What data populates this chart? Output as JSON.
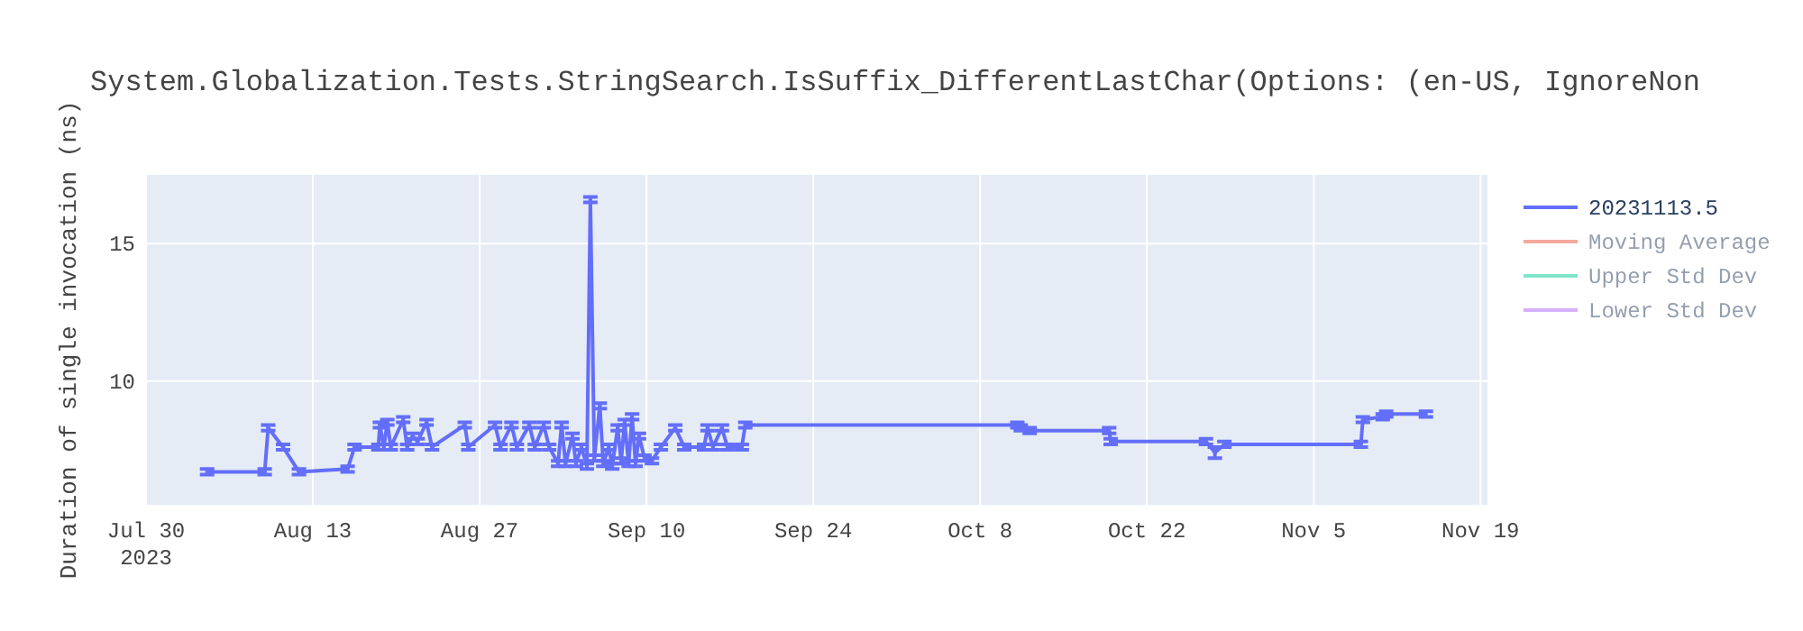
{
  "chart_data": {
    "type": "line",
    "title": "System.Globalization.Tests.StringSearch.IsSuffix_DifferentLastChar(Options: (en-US, IgnoreNon",
    "ylabel": "Duration of single invocation (ns)",
    "xlim": [
      "2023-07-30",
      "2023-11-19T14:00"
    ],
    "ylim": [
      5.5,
      17.5
    ],
    "yticks": [
      10,
      15
    ],
    "xticks": [
      {
        "value": "2023-07-30",
        "label": "Jul 30\n2023"
      },
      {
        "value": "2023-08-13",
        "label": "Aug 13"
      },
      {
        "value": "2023-08-27",
        "label": "Aug 27"
      },
      {
        "value": "2023-09-10",
        "label": "Sep 10"
      },
      {
        "value": "2023-09-24",
        "label": "Sep 24"
      },
      {
        "value": "2023-10-08",
        "label": "Oct 8"
      },
      {
        "value": "2023-10-22",
        "label": "Oct 22"
      },
      {
        "value": "2023-11-05",
        "label": "Nov 5"
      },
      {
        "value": "2023-11-19",
        "label": "Nov 19"
      }
    ],
    "grid": true,
    "legend": "right",
    "marker": "none",
    "line_style": "solid",
    "series": [
      {
        "name": "20231113.5",
        "color": "#636efa",
        "x": [
          "2023-08-04T03:00",
          "2023-08-08T23:00",
          "2023-08-09T06:00",
          "2023-08-10T12:00",
          "2023-08-11T20:00",
          "2023-08-15T22:00",
          "2023-08-16T12:00",
          "2023-08-18T12:00",
          "2023-08-18T15:00",
          "2023-08-18T23:00",
          "2023-08-19T06:00",
          "2023-08-19T13:00",
          "2023-08-20T14:00",
          "2023-08-20T22:00",
          "2023-08-21T09:00",
          "2023-08-21T19:00",
          "2023-08-22T13:00",
          "2023-08-23T00:00",
          "2023-08-25T18:00",
          "2023-08-26T01:00",
          "2023-08-28T07:00",
          "2023-08-28T18:00",
          "2023-08-29T16:00",
          "2023-08-30T03:00",
          "2023-08-31T04:00",
          "2023-08-31T15:00",
          "2023-09-01T09:00",
          "2023-09-01T20:00",
          "2023-09-02T14:00",
          "2023-09-02T21:00",
          "2023-09-03T05:00",
          "2023-09-03T19:00",
          "2023-09-04T02:00",
          "2023-09-04T13:00",
          "2023-09-05T00:00",
          "2023-09-05T07:00",
          "2023-09-05T15:00",
          "2023-09-06T02:00",
          "2023-09-06T09:00",
          "2023-09-06T20:00",
          "2023-09-07T03:00",
          "2023-09-07T14:00",
          "2023-09-07T21:00",
          "2023-09-08T04:00",
          "2023-09-08T12:00",
          "2023-09-08T19:00",
          "2023-09-09T02:00",
          "2023-09-09T09:00",
          "2023-09-09T20:00",
          "2023-09-10T11:00",
          "2023-09-11T05:00",
          "2023-09-12T10:00",
          "2023-09-13T04:00",
          "2023-09-14T20:00",
          "2023-09-15T03:00",
          "2023-09-15T14:00",
          "2023-09-16T08:00",
          "2023-09-16T19:00",
          "2023-09-18T00:00",
          "2023-09-18T07:00",
          "2023-10-11T03:00",
          "2023-10-11T10:00",
          "2023-10-12T04:00",
          "2023-10-18T20:00",
          "2023-10-18T23:00",
          "2023-10-26T23:00",
          "2023-10-27T17:00",
          "2023-10-28T12:00",
          "2023-11-08T23:00",
          "2023-11-09T03:00",
          "2023-11-10T19:00",
          "2023-11-11T02:00",
          "2023-11-14T10:00"
        ],
        "values": [
          6.7,
          6.7,
          8.3,
          7.6,
          6.7,
          6.8,
          7.6,
          7.6,
          8.4,
          7.6,
          8.5,
          7.6,
          8.6,
          7.6,
          8.0,
          7.8,
          8.5,
          7.6,
          8.4,
          7.6,
          8.4,
          7.6,
          8.4,
          7.6,
          8.4,
          7.6,
          8.4,
          7.6,
          7.0,
          8.4,
          7.0,
          8.0,
          7.0,
          7.6,
          6.9,
          16.6,
          7.2,
          9.1,
          7.0,
          7.6,
          6.9,
          8.3,
          7.1,
          8.5,
          7.0,
          8.7,
          7.0,
          8.0,
          7.2,
          7.1,
          7.6,
          8.3,
          7.6,
          7.6,
          8.3,
          7.6,
          8.3,
          7.6,
          7.6,
          8.4,
          8.4,
          8.3,
          8.2,
          8.2,
          7.8,
          7.8,
          7.4,
          7.7,
          7.7,
          8.6,
          8.7,
          8.8,
          8.8
        ],
        "errors": [
          0.1,
          0.1,
          0.1,
          0.1,
          0.1,
          0.1,
          0.1,
          0.1,
          0.1,
          0.1,
          0.1,
          0.1,
          0.1,
          0.1,
          0.1,
          0.1,
          0.1,
          0.1,
          0.1,
          0.1,
          0.1,
          0.1,
          0.1,
          0.1,
          0.1,
          0.1,
          0.1,
          0.1,
          0.1,
          0.1,
          0.1,
          0.1,
          0.1,
          0.1,
          0.1,
          0.1,
          0.1,
          0.1,
          0.1,
          0.1,
          0.1,
          0.1,
          0.1,
          0.1,
          0.1,
          0.1,
          0.1,
          0.1,
          0.1,
          0.1,
          0.1,
          0.1,
          0.1,
          0.1,
          0.1,
          0.1,
          0.1,
          0.1,
          0.1,
          0.1,
          0.1,
          0.1,
          0.1,
          0.1,
          0.1,
          0.1,
          0.2,
          0.1,
          0.1,
          0.1,
          0.1,
          0.1,
          0.1
        ]
      },
      {
        "name": "Moving Average",
        "color": "#ef553b"
      },
      {
        "name": "Upper Std Dev",
        "color": "#00cc96"
      },
      {
        "name": "Lower Std Dev",
        "color": "#ab63fa"
      }
    ]
  }
}
